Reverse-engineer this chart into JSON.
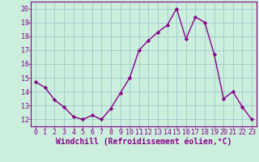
{
  "x": [
    0,
    1,
    2,
    3,
    4,
    5,
    6,
    7,
    8,
    9,
    10,
    11,
    12,
    13,
    14,
    15,
    16,
    17,
    18,
    19,
    20,
    21,
    22,
    23
  ],
  "y": [
    14.7,
    14.3,
    13.4,
    12.9,
    12.2,
    12.0,
    12.3,
    12.0,
    12.8,
    13.9,
    15.0,
    17.0,
    17.7,
    18.3,
    18.8,
    20.0,
    17.8,
    19.4,
    19.0,
    16.7,
    13.5,
    14.0,
    12.9,
    12.0
  ],
  "line_color": "#880088",
  "marker": "D",
  "marker_size": 2.2,
  "bg_color": "#cceedd",
  "grid_color": "#99cccc",
  "xlabel": "Windchill (Refroidissement éolien,°C)",
  "xlabel_fontsize": 7,
  "ytick_labels": [
    "12",
    "13",
    "14",
    "15",
    "16",
    "17",
    "18",
    "19",
    "20"
  ],
  "ytick_vals": [
    12,
    13,
    14,
    15,
    16,
    17,
    18,
    19,
    20
  ],
  "xtick_vals": [
    0,
    1,
    2,
    3,
    4,
    5,
    6,
    7,
    8,
    9,
    10,
    11,
    12,
    13,
    14,
    15,
    16,
    17,
    18,
    19,
    20,
    21,
    22,
    23
  ],
  "ylim": [
    11.5,
    20.5
  ],
  "xlim": [
    -0.5,
    23.5
  ],
  "tick_fontsize": 6,
  "line_width": 1.0
}
